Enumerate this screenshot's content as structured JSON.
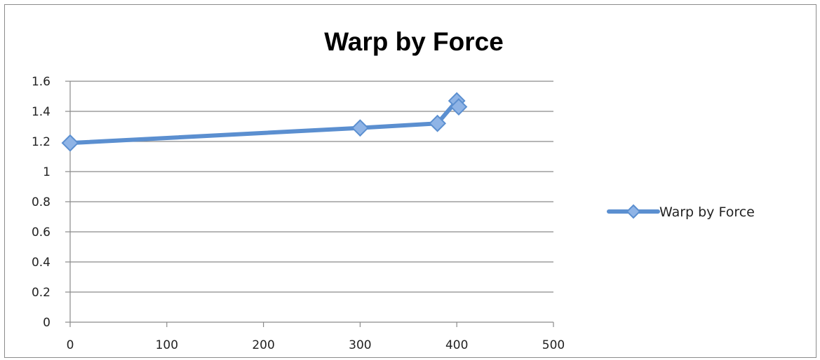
{
  "chart_data": {
    "type": "scatter",
    "title": "Warp by Force",
    "xlabel": "",
    "ylabel": "",
    "xlim": [
      0,
      500
    ],
    "ylim": [
      0,
      1.6
    ],
    "x_ticks": [
      "0",
      "100",
      "200",
      "300",
      "400",
      "500"
    ],
    "y_ticks": [
      "0",
      "0.2",
      "0.4",
      "0.6",
      "0.8",
      "1",
      "1.2",
      "1.4",
      "1.6"
    ],
    "grid": "horizontal",
    "legend_position": "right",
    "series": [
      {
        "name": "Warp by Force",
        "color": "#5b8fd0",
        "marker": "diamond",
        "line": "straight",
        "x": [
          0,
          300,
          380,
          400,
          402
        ],
        "y": [
          1.19,
          1.29,
          1.32,
          1.47,
          1.43
        ]
      }
    ]
  }
}
